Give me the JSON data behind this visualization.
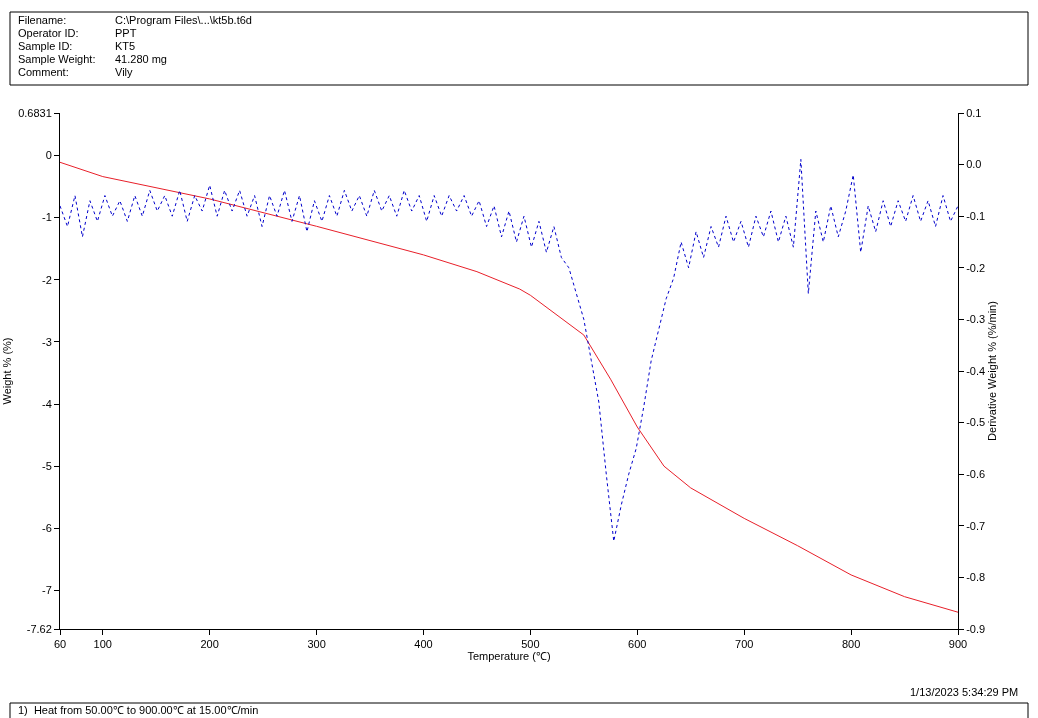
{
  "chart_data": {
    "type": "line",
    "xlabel": "Temperature (℃)",
    "ylabel": "Weight % (%)",
    "y2label": "Derivative Weight % (%/min)",
    "xlim": [
      60,
      900
    ],
    "xticks": [
      60,
      100,
      200,
      300,
      400,
      500,
      600,
      700,
      800,
      900
    ],
    "ylim": [
      -7.62,
      0.6831
    ],
    "yticks": [
      0.6831,
      0,
      -1,
      -2,
      -3,
      -4,
      -5,
      -6,
      -7,
      -7.62
    ],
    "y2lim": [
      -0.9,
      0.1
    ],
    "y2ticks": [
      0.1,
      {
        "value": 0,
        "label": "0.0"
      },
      -0.1,
      -0.2,
      -0.3,
      -0.4,
      -0.5,
      -0.6,
      -0.7,
      -0.8,
      -0.9
    ],
    "series": [
      {
        "color": "#e8202a",
        "line_style": "solid",
        "x": [
          60,
          100,
          200,
          300,
          400,
          450,
          490,
          500,
          550,
          575,
          600,
          625,
          650,
          700,
          750,
          800,
          850,
          900
        ],
        "values": [
          -0.11,
          -0.34,
          -0.7,
          -1.14,
          -1.6,
          -1.87,
          -2.15,
          -2.25,
          -2.89,
          -3.6,
          -4.37,
          -5.0,
          -5.35,
          -5.84,
          -6.28,
          -6.75,
          -7.1,
          -7.35
        ]
      },
      {
        "color": "#0000cc",
        "line_style": "dotted",
        "axis": "y2",
        "x": [
          60,
          67,
          74,
          81,
          88,
          95,
          102,
          109,
          116,
          123,
          130,
          137,
          144,
          151,
          158,
          165,
          172,
          179,
          186,
          193,
          200,
          207,
          214,
          221,
          228,
          235,
          242,
          249,
          256,
          263,
          270,
          277,
          284,
          291,
          298,
          305,
          312,
          319,
          326,
          333,
          340,
          347,
          354,
          361,
          368,
          375,
          382,
          389,
          396,
          403,
          410,
          417,
          424,
          431,
          438,
          445,
          452,
          459,
          466,
          473,
          480,
          487,
          494,
          501,
          508,
          515,
          522,
          529,
          536,
          543,
          550,
          557,
          564,
          571,
          578,
          585,
          592,
          599,
          606,
          613,
          620,
          627,
          634,
          641,
          648,
          655,
          662,
          669,
          676,
          683,
          690,
          697,
          704,
          711,
          718,
          725,
          732,
          739,
          746,
          753,
          760,
          767,
          774,
          781,
          788,
          795,
          802,
          809,
          816,
          823,
          830,
          837,
          844,
          851,
          858,
          865,
          872,
          879,
          886,
          893,
          900
        ],
        "values": [
          -0.08,
          -0.12,
          -0.06,
          -0.14,
          -0.07,
          -0.11,
          -0.06,
          -0.1,
          -0.07,
          -0.11,
          -0.06,
          -0.1,
          -0.05,
          -0.09,
          -0.06,
          -0.1,
          -0.05,
          -0.11,
          -0.06,
          -0.09,
          -0.04,
          -0.1,
          -0.05,
          -0.09,
          -0.05,
          -0.1,
          -0.06,
          -0.12,
          -0.06,
          -0.1,
          -0.05,
          -0.11,
          -0.06,
          -0.13,
          -0.07,
          -0.11,
          -0.06,
          -0.1,
          -0.05,
          -0.09,
          -0.06,
          -0.1,
          -0.05,
          -0.09,
          -0.06,
          -0.1,
          -0.05,
          -0.09,
          -0.06,
          -0.11,
          -0.06,
          -0.1,
          -0.06,
          -0.09,
          -0.06,
          -0.1,
          -0.07,
          -0.12,
          -0.08,
          -0.14,
          -0.09,
          -0.15,
          -0.1,
          -0.16,
          -0.11,
          -0.17,
          -0.12,
          -0.18,
          -0.2,
          -0.25,
          -0.3,
          -0.38,
          -0.46,
          -0.6,
          -0.73,
          -0.66,
          -0.6,
          -0.55,
          -0.47,
          -0.38,
          -0.32,
          -0.26,
          -0.22,
          -0.15,
          -0.2,
          -0.13,
          -0.18,
          -0.12,
          -0.16,
          -0.1,
          -0.15,
          -0.11,
          -0.16,
          -0.1,
          -0.14,
          -0.09,
          -0.15,
          -0.1,
          -0.16,
          0.01,
          -0.25,
          -0.09,
          -0.15,
          -0.08,
          -0.14,
          -0.09,
          -0.02,
          -0.17,
          -0.08,
          -0.13,
          -0.07,
          -0.12,
          -0.07,
          -0.11,
          -0.06,
          -0.11,
          -0.07,
          -0.12,
          -0.06,
          -0.11,
          -0.08
        ]
      }
    ],
    "annotations": [
      "Filename:",
      "C:\\Program Files\\...\\kt5b.t6d",
      "Operator ID:",
      "PPT",
      "Sample ID:",
      "KT5",
      "Sample Weight:",
      "41.280 mg",
      "Comment:",
      "Vily",
      "1/13/2023 5:34:29 PM",
      "1)  Heat from 50.00℃ to 900.00℃ at 15.00℃/min"
    ]
  }
}
